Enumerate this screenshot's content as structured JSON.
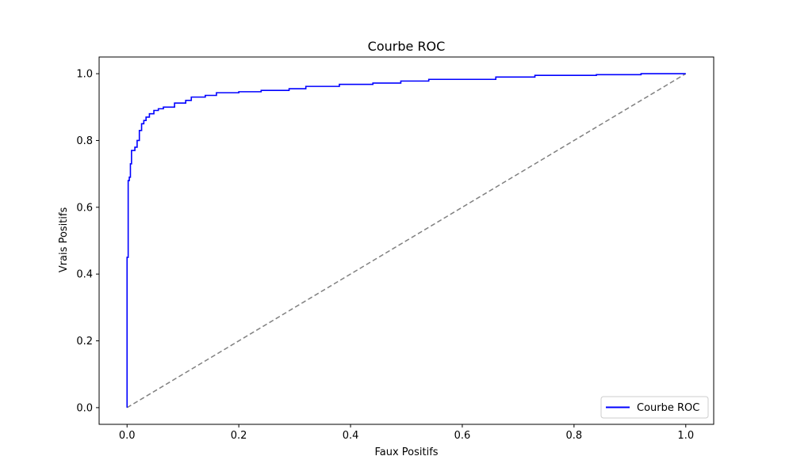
{
  "chart_data": {
    "type": "line",
    "title": "Courbe ROC",
    "xlabel": "Faux Positifs",
    "ylabel": "Vrais Positifs",
    "xlim": [
      -0.05,
      1.05
    ],
    "ylim": [
      -0.05,
      1.05
    ],
    "x_ticks": [
      0.0,
      0.2,
      0.4,
      0.6,
      0.8,
      1.0
    ],
    "x_tick_labels": [
      "0.0",
      "0.2",
      "0.4",
      "0.6",
      "0.8",
      "1.0"
    ],
    "y_ticks": [
      0.0,
      0.2,
      0.4,
      0.6,
      0.8,
      1.0
    ],
    "y_tick_labels": [
      "0.0",
      "0.2",
      "0.4",
      "0.6",
      "0.8",
      "1.0"
    ],
    "grid": false,
    "legend_position": "lower right",
    "series": [
      {
        "name": "Courbe ROC",
        "color": "#0000ff",
        "style": "solid",
        "step": true,
        "x": [
          0.0,
          0.0,
          0.002,
          0.002,
          0.004,
          0.004,
          0.006,
          0.006,
          0.008,
          0.008,
          0.01,
          0.01,
          0.014,
          0.014,
          0.018,
          0.018,
          0.022,
          0.022,
          0.026,
          0.026,
          0.03,
          0.03,
          0.034,
          0.034,
          0.04,
          0.04,
          0.048,
          0.048,
          0.056,
          0.056,
          0.065,
          0.065,
          0.085,
          0.085,
          0.105,
          0.105,
          0.115,
          0.115,
          0.14,
          0.14,
          0.16,
          0.16,
          0.2,
          0.2,
          0.24,
          0.24,
          0.29,
          0.29,
          0.32,
          0.32,
          0.38,
          0.38,
          0.44,
          0.44,
          0.49,
          0.49,
          0.54,
          0.54,
          0.66,
          0.66,
          0.73,
          0.73,
          0.84,
          0.84,
          0.92,
          0.92,
          1.0
        ],
        "y": [
          0.0,
          0.45,
          0.45,
          0.68,
          0.68,
          0.69,
          0.69,
          0.73,
          0.73,
          0.77,
          0.77,
          0.77,
          0.77,
          0.78,
          0.78,
          0.8,
          0.8,
          0.83,
          0.83,
          0.85,
          0.85,
          0.86,
          0.86,
          0.87,
          0.87,
          0.88,
          0.88,
          0.89,
          0.89,
          0.895,
          0.895,
          0.9,
          0.9,
          0.912,
          0.912,
          0.92,
          0.92,
          0.93,
          0.93,
          0.935,
          0.935,
          0.943,
          0.943,
          0.946,
          0.946,
          0.95,
          0.95,
          0.955,
          0.955,
          0.962,
          0.962,
          0.968,
          0.968,
          0.972,
          0.972,
          0.978,
          0.978,
          0.983,
          0.983,
          0.99,
          0.99,
          0.995,
          0.995,
          0.997,
          0.997,
          1.0,
          1.0
        ]
      },
      {
        "color": "#808080",
        "style": "dashed",
        "step": false,
        "x": [
          0.0,
          1.0
        ],
        "y": [
          0.0,
          1.0
        ]
      }
    ]
  }
}
